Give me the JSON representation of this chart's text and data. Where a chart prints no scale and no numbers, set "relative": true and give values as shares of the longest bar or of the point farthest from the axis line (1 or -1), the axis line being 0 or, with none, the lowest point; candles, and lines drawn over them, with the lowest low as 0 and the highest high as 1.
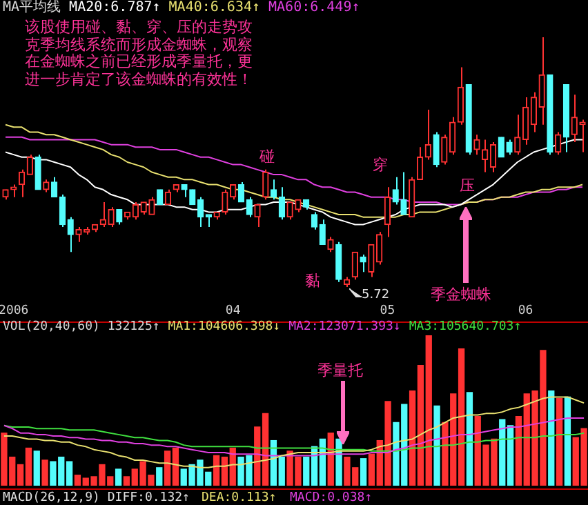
{
  "chart_data": [
    {
      "type": "candlestick",
      "title": "MA平均线",
      "relative": true,
      "legend": "top left",
      "categories": [
        null,
        "2006",
        null,
        null,
        null,
        null,
        null,
        null,
        null,
        null,
        null,
        null,
        null,
        null,
        null,
        null,
        null,
        null,
        null,
        null,
        null,
        null,
        null,
        null,
        null,
        null,
        null,
        null,
        "04",
        null,
        null,
        null,
        null,
        null,
        null,
        null,
        null,
        null,
        null,
        null,
        null,
        null,
        null,
        null,
        null,
        null,
        null,
        "05",
        null,
        null,
        null,
        null,
        null,
        null,
        null,
        null,
        null,
        null,
        null,
        null,
        null,
        null,
        null,
        null,
        "06",
        null,
        null,
        null,
        null,
        null,
        null,
        null
      ],
      "ohlc": [
        [
          0.36,
          0.39,
          0.35,
          0.39
        ],
        [
          0.39,
          0.41,
          0.36,
          0.4
        ],
        [
          0.41,
          0.47,
          0.36,
          0.46
        ],
        [
          0.45,
          0.53,
          0.45,
          0.52
        ],
        [
          0.52,
          0.53,
          0.39,
          0.39
        ],
        [
          0.39,
          0.43,
          0.38,
          0.42
        ],
        [
          0.42,
          0.44,
          0.36,
          0.36
        ],
        [
          0.36,
          0.37,
          0.24,
          0.25
        ],
        [
          0.27,
          0.28,
          0.14,
          0.21
        ],
        [
          0.21,
          0.24,
          0.18,
          0.23
        ],
        [
          0.22,
          0.24,
          0.21,
          0.23
        ],
        [
          0.23,
          0.25,
          0.22,
          0.25
        ],
        [
          0.25,
          0.34,
          0.24,
          0.27
        ],
        [
          0.25,
          0.32,
          0.24,
          0.31
        ],
        [
          0.31,
          0.31,
          0.25,
          0.26
        ],
        [
          0.28,
          0.3,
          0.27,
          0.3
        ],
        [
          0.28,
          0.34,
          0.27,
          0.33
        ],
        [
          0.3,
          0.34,
          0.29,
          0.34
        ],
        [
          0.29,
          0.36,
          0.29,
          0.35
        ],
        [
          0.39,
          0.39,
          0.33,
          0.33
        ],
        [
          0.33,
          0.39,
          0.33,
          0.38
        ],
        [
          0.39,
          0.41,
          0.38,
          0.41
        ],
        [
          0.41,
          0.41,
          0.36,
          0.39
        ],
        [
          0.39,
          0.39,
          0.33,
          0.33
        ],
        [
          0.35,
          0.36,
          0.24,
          0.28
        ],
        [
          0.29,
          0.29,
          0.24,
          0.28
        ],
        [
          0.28,
          0.3,
          0.27,
          0.3
        ],
        [
          0.3,
          0.39,
          0.29,
          0.38
        ],
        [
          0.36,
          0.41,
          0.35,
          0.41
        ],
        [
          0.41,
          0.42,
          0.34,
          0.34
        ],
        [
          0.35,
          0.36,
          0.28,
          0.29
        ],
        [
          0.28,
          0.33,
          0.24,
          0.33
        ],
        [
          0.36,
          0.47,
          0.35,
          0.46
        ],
        [
          0.39,
          0.43,
          0.35,
          0.36
        ],
        [
          0.36,
          0.4,
          0.27,
          0.28
        ],
        [
          0.28,
          0.34,
          0.27,
          0.34
        ],
        [
          0.31,
          0.35,
          0.3,
          0.35
        ],
        [
          0.35,
          0.35,
          0.31,
          0.32
        ],
        [
          0.29,
          0.3,
          0.23,
          0.24
        ],
        [
          0.25,
          0.27,
          0.17,
          0.17
        ],
        [
          0.15,
          0.2,
          0.14,
          0.19
        ],
        [
          0.17,
          0.18,
          0.02,
          0.03
        ],
        [
          0.01,
          0.04,
          0,
          0.03
        ],
        [
          0.04,
          0.14,
          0.03,
          0.14
        ],
        [
          0.12,
          0.13,
          0.06,
          0.1
        ],
        [
          0.06,
          0.17,
          0.04,
          0.17
        ],
        [
          0.1,
          0.22,
          0.09,
          0.21
        ],
        [
          0.25,
          0.4,
          0.2,
          0.36
        ],
        [
          0.39,
          0.44,
          0.33,
          0.34
        ],
        [
          0.35,
          0.46,
          0.29,
          0.29
        ],
        [
          0.28,
          0.44,
          0.28,
          0.43
        ],
        [
          0.43,
          0.56,
          0.43,
          0.52
        ],
        [
          0.52,
          0.71,
          0.51,
          0.57
        ],
        [
          0.61,
          0.62,
          0.48,
          0.49
        ],
        [
          0.5,
          0.61,
          0.49,
          0.6
        ],
        [
          0.54,
          0.68,
          0.53,
          0.66
        ],
        [
          0.66,
          0.88,
          0.65,
          0.8
        ],
        [
          0.81,
          0.81,
          0.53,
          0.54
        ],
        [
          0.55,
          0.61,
          0.53,
          0.59
        ],
        [
          0.51,
          0.59,
          0.46,
          0.55
        ],
        [
          0.48,
          0.58,
          0.46,
          0.57
        ],
        [
          0.6,
          0.6,
          0.52,
          0.52
        ],
        [
          0.58,
          0.59,
          0.53,
          0.54
        ],
        [
          0.54,
          0.69,
          0.53,
          0.6
        ],
        [
          0.59,
          0.76,
          0.57,
          0.72
        ],
        [
          0.65,
          0.78,
          0.62,
          0.76
        ],
        [
          0.72,
          1,
          0.65,
          0.85
        ],
        [
          0.85,
          0.85,
          0.53,
          0.54
        ],
        [
          0.54,
          0.62,
          0.53,
          0.61
        ],
        [
          0.81,
          0.81,
          0.54,
          0.6
        ],
        [
          0.61,
          0.77,
          0.58,
          0.68
        ],
        [
          0.65,
          0.67,
          0.54,
          0.66
        ]
      ],
      "colors": [
        "#ff3232",
        "#ff3232",
        "#ff3232",
        "#ff3232",
        "#54fcfc",
        "#ff3232",
        "#54fcfc",
        "#54fcfc",
        "#54fcfc",
        "#ff3232",
        "#ff3232",
        "#ff3232",
        "#ff3232",
        "#ff3232",
        "#54fcfc",
        "#ff3232",
        "#ff3232",
        "#ff3232",
        "#ff3232",
        "#54fcfc",
        "#ff3232",
        "#ff3232",
        "#54fcfc",
        "#54fcfc",
        "#54fcfc",
        "#54fcfc",
        "#ff3232",
        "#ff3232",
        "#ff3232",
        "#54fcfc",
        "#54fcfc",
        "#ff3232",
        "#ff3232",
        "#54fcfc",
        "#54fcfc",
        "#ff3232",
        "#ff3232",
        "#54fcfc",
        "#54fcfc",
        "#54fcfc",
        "#ff3232",
        "#54fcfc",
        "#ff3232",
        "#ff3232",
        "#54fcfc",
        "#ff3232",
        "#ff3232",
        "#ff3232",
        "#54fcfc",
        "#54fcfc",
        "#ff3232",
        "#ff3232",
        "#ff3232",
        "#54fcfc",
        "#ff3232",
        "#ff3232",
        "#ff3232",
        "#54fcfc",
        "#ff3232",
        "#ff3232",
        "#ff3232",
        "#54fcfc",
        "#54fcfc",
        "#ff3232",
        "#ff3232",
        "#ff3232",
        "#ff3232",
        "#54fcfc",
        "#ff3232",
        "#54fcfc",
        "#ff3232",
        "#ff3232"
      ],
      "series": [
        {
          "name": "MA20:6.787↑",
          "type": "line",
          "color": "#ffffff",
          "values": [
            0.54,
            0.53,
            0.52,
            0.52,
            0.51,
            0.51,
            0.5,
            0.49,
            0.48,
            0.45,
            0.43,
            0.4,
            0.39,
            0.37,
            0.36,
            0.35,
            0.33,
            0.33,
            0.33,
            0.33,
            0.33,
            0.32,
            0.32,
            0.31,
            0.31,
            0.3,
            0.3,
            0.31,
            0.31,
            0.31,
            0.32,
            0.33,
            0.33,
            0.34,
            0.34,
            0.34,
            0.33,
            0.32,
            0.31,
            0.3,
            0.28,
            0.27,
            0.26,
            0.25,
            0.25,
            0.26,
            0.27,
            0.28,
            0.29,
            0.31,
            0.32,
            0.33,
            0.33,
            0.33,
            0.33,
            0.32,
            0.33,
            0.35,
            0.37,
            0.39,
            0.41,
            0.44,
            0.47,
            0.5,
            0.52,
            0.54,
            0.55,
            0.56,
            0.57,
            0.58,
            0.59,
            0.59
          ]
        },
        {
          "name": "MA40:6.634↑",
          "type": "line",
          "color": "#e8e070",
          "values": [
            0.65,
            0.64,
            0.64,
            0.62,
            0.62,
            0.61,
            0.61,
            0.6,
            0.59,
            0.58,
            0.57,
            0.56,
            0.55,
            0.53,
            0.52,
            0.5,
            0.49,
            0.48,
            0.46,
            0.45,
            0.44,
            0.44,
            0.43,
            0.43,
            0.42,
            0.41,
            0.41,
            0.4,
            0.39,
            0.39,
            0.38,
            0.37,
            0.36,
            0.36,
            0.35,
            0.35,
            0.34,
            0.33,
            0.32,
            0.31,
            0.3,
            0.29,
            0.29,
            0.29,
            0.28,
            0.28,
            0.28,
            0.28,
            0.28,
            0.29,
            0.29,
            0.3,
            0.3,
            0.3,
            0.31,
            0.32,
            0.33,
            0.34,
            0.34,
            0.35,
            0.35,
            0.36,
            0.36,
            0.37,
            0.38,
            0.38,
            0.39,
            0.39,
            0.4,
            0.4,
            0.4,
            0.41
          ]
        },
        {
          "name": "MA60:6.449↑",
          "type": "line",
          "color": "#e040e0",
          "values": [
            0.6,
            0.6,
            0.6,
            0.59,
            0.59,
            0.59,
            0.59,
            0.59,
            0.59,
            0.59,
            0.59,
            0.59,
            0.58,
            0.57,
            0.57,
            0.57,
            0.56,
            0.56,
            0.56,
            0.55,
            0.55,
            0.55,
            0.54,
            0.53,
            0.52,
            0.52,
            0.51,
            0.5,
            0.49,
            0.49,
            0.48,
            0.47,
            0.46,
            0.45,
            0.45,
            0.44,
            0.43,
            0.43,
            0.41,
            0.4,
            0.4,
            0.39,
            0.38,
            0.38,
            0.37,
            0.36,
            0.36,
            0.36,
            0.35,
            0.35,
            0.34,
            0.34,
            0.34,
            0.34,
            0.33,
            0.33,
            0.33,
            0.34,
            0.34,
            0.35,
            0.35,
            0.36,
            0.36,
            0.36,
            0.37,
            0.38,
            0.38,
            0.38,
            0.39,
            0.39,
            0.4,
            0.4
          ]
        }
      ],
      "annotations": [
        "该股使用碰、黏、穿、压的走势攻克季均线系统而形成金蜘蛛，观察在金蜘蛛之前已经形成季量托，更进一步肯定了该金蜘蛛的有效性！",
        "碰",
        "黏",
        "穿",
        "压",
        "季金蜘蛛",
        "5.72"
      ]
    },
    {
      "type": "bar",
      "title": "VOL(20,40,60) 132125↑",
      "relative": true,
      "legend": "top",
      "tick_labels": false,
      "categories": [
        null,
        "2006",
        null,
        null,
        null,
        null,
        null,
        null,
        null,
        null,
        null,
        null,
        null,
        null,
        null,
        null,
        null,
        null,
        null,
        null,
        null,
        null,
        null,
        null,
        null,
        null,
        null,
        null,
        "04",
        null,
        null,
        null,
        null,
        null,
        null,
        null,
        null,
        null,
        null,
        null,
        null,
        null,
        null,
        null,
        null,
        null,
        null,
        "05",
        null,
        null,
        null,
        null,
        null,
        null,
        null,
        null,
        null,
        null,
        null,
        null,
        null,
        null,
        null,
        null,
        "06",
        null,
        null,
        null,
        null,
        null,
        null,
        null
      ],
      "values": [
        0.35,
        0.19,
        0.14,
        0.25,
        0.23,
        0.17,
        0.16,
        0.19,
        0.16,
        0.07,
        0.05,
        0.06,
        0.14,
        0.06,
        0.11,
        0.06,
        0.11,
        0.16,
        0.07,
        0.12,
        0.23,
        0.25,
        0.11,
        0.14,
        0.17,
        0.09,
        0.2,
        0.19,
        0.25,
        0.19,
        0.2,
        0.39,
        0.48,
        0.3,
        0.19,
        0.23,
        0.19,
        0.19,
        0.26,
        0.31,
        0.35,
        0.31,
        0.19,
        0.12,
        0.18,
        0.21,
        0.3,
        0.56,
        0.42,
        0.54,
        0.63,
        0.8,
        1,
        0.53,
        0.42,
        0.61,
        0.91,
        0.62,
        0.46,
        0.27,
        0.31,
        0.44,
        0.4,
        0.46,
        0.61,
        0.63,
        0.9,
        0.63,
        0.58,
        0.59,
        0.32,
        0.38
      ],
      "colors": [
        "#ff3232",
        "#ff3232",
        "#ff3232",
        "#ff3232",
        "#54fcfc",
        "#ff3232",
        "#54fcfc",
        "#54fcfc",
        "#54fcfc",
        "#ff3232",
        "#ff3232",
        "#ff3232",
        "#ff3232",
        "#ff3232",
        "#54fcfc",
        "#ff3232",
        "#ff3232",
        "#ff3232",
        "#ff3232",
        "#54fcfc",
        "#ff3232",
        "#ff3232",
        "#54fcfc",
        "#54fcfc",
        "#54fcfc",
        "#54fcfc",
        "#ff3232",
        "#ff3232",
        "#ff3232",
        "#54fcfc",
        "#54fcfc",
        "#ff3232",
        "#ff3232",
        "#54fcfc",
        "#54fcfc",
        "#ff3232",
        "#ff3232",
        "#54fcfc",
        "#54fcfc",
        "#54fcfc",
        "#ff3232",
        "#54fcfc",
        "#ff3232",
        "#ff3232",
        "#54fcfc",
        "#ff3232",
        "#ff3232",
        "#ff3232",
        "#54fcfc",
        "#54fcfc",
        "#ff3232",
        "#ff3232",
        "#ff3232",
        "#54fcfc",
        "#ff3232",
        "#ff3232",
        "#ff3232",
        "#54fcfc",
        "#ff3232",
        "#ff3232",
        "#ff3232",
        "#54fcfc",
        "#54fcfc",
        "#ff3232",
        "#ff3232",
        "#ff3232",
        "#ff3232",
        "#54fcfc",
        "#ff3232",
        "#54fcfc",
        "#ff3232",
        "#ff3232"
      ],
      "series": [
        {
          "name": "MA1:104606.398↓",
          "type": "line",
          "color": "#e8e070",
          "values": [
            0.33,
            0.33,
            0.32,
            0.31,
            0.31,
            0.3,
            0.3,
            0.29,
            0.29,
            0.27,
            0.26,
            0.24,
            0.23,
            0.22,
            0.2,
            0.19,
            0.17,
            0.17,
            0.16,
            0.15,
            0.15,
            0.14,
            0.13,
            0.13,
            0.12,
            0.12,
            0.13,
            0.13,
            0.14,
            0.14,
            0.15,
            0.16,
            0.17,
            0.18,
            0.2,
            0.21,
            0.22,
            0.22,
            0.22,
            0.22,
            0.22,
            0.23,
            0.23,
            0.23,
            0.23,
            0.24,
            0.26,
            0.27,
            0.29,
            0.3,
            0.31,
            0.34,
            0.37,
            0.39,
            0.42,
            0.45,
            0.46,
            0.47,
            0.47,
            0.48,
            0.48,
            0.49,
            0.51,
            0.52,
            0.54,
            0.56,
            0.58,
            0.59,
            0.59,
            0.59,
            0.57,
            0.55
          ]
        },
        {
          "name": "MA2:123071.393↓",
          "type": "line",
          "color": "#e040e0",
          "values": [
            0.4,
            0.38,
            0.35,
            0.35,
            0.34,
            0.34,
            0.33,
            0.33,
            0.32,
            0.32,
            0.31,
            0.31,
            0.3,
            0.3,
            0.29,
            0.29,
            0.28,
            0.28,
            0.27,
            0.27,
            0.26,
            0.26,
            0.25,
            0.24,
            0.23,
            0.22,
            0.22,
            0.22,
            0.21,
            0.21,
            0.21,
            0.21,
            0.2,
            0.2,
            0.2,
            0.2,
            0.2,
            0.2,
            0.2,
            0.21,
            0.21,
            0.21,
            0.21,
            0.21,
            0.21,
            0.22,
            0.22,
            0.22,
            0.24,
            0.25,
            0.27,
            0.28,
            0.3,
            0.31,
            0.32,
            0.33,
            0.34,
            0.34,
            0.35,
            0.36,
            0.37,
            0.38,
            0.39,
            0.39,
            0.4,
            0.41,
            0.42,
            0.43,
            0.44,
            0.45,
            0.45,
            0.45
          ]
        },
        {
          "name": "MA3:105640.703↑",
          "type": "line",
          "color": "#40e040",
          "values": [
            0.4,
            0.39,
            0.39,
            0.39,
            0.38,
            0.38,
            0.38,
            0.38,
            0.37,
            0.37,
            0.37,
            0.37,
            0.36,
            0.35,
            0.34,
            0.33,
            0.32,
            0.32,
            0.31,
            0.3,
            0.3,
            0.29,
            0.27,
            0.26,
            0.26,
            0.26,
            0.26,
            0.26,
            0.26,
            0.26,
            0.26,
            0.25,
            0.25,
            0.25,
            0.25,
            0.25,
            0.25,
            0.25,
            0.25,
            0.25,
            0.24,
            0.24,
            0.24,
            0.24,
            0.24,
            0.23,
            0.23,
            0.23,
            0.23,
            0.24,
            0.25,
            0.25,
            0.26,
            0.26,
            0.27,
            0.27,
            0.28,
            0.29,
            0.29,
            0.3,
            0.3,
            0.31,
            0.31,
            0.32,
            0.32,
            0.32,
            0.33,
            0.33,
            0.34,
            0.34,
            0.34,
            0.35
          ]
        }
      ],
      "annotations": [
        "季量托",
        "MACD(26,12,9) DIFF:0.132↑",
        "DEA:0.113↑",
        "MACD:0.038↑"
      ]
    }
  ]
}
